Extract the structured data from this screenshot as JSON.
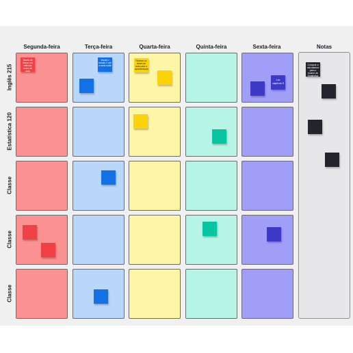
{
  "colors": {
    "monday": "#fb9191",
    "tuesday": "#b9d6fb",
    "wednesday": "#fdf6a7",
    "thursday": "#b6f5e6",
    "friday": "#a19ef8",
    "notes": "#e7e7e9",
    "sticky_red": "#f24047",
    "sticky_blue": "#1371e6",
    "sticky_yellow": "#fcd20b",
    "sticky_teal": "#08c5a2",
    "sticky_indigo": "#3d3ac7",
    "sticky_dark": "#22252b"
  },
  "columns": [
    "Segunda-feira",
    "Terça-feira",
    "Quarta-feira",
    "Quinta-feira",
    "Sexta-feira",
    "Notas"
  ],
  "rows": [
    "Inglês 215",
    "Estatística 120",
    "Classe",
    "Classe",
    "Classe"
  ],
  "sticky_notes": {
    "monday_r1": "Tarefa de leitura em reflexão antes de aula",
    "tuesday_r1": "Iniciar o ensaio 2 até a meia noite",
    "wednesday_r1": "Revisar os slides de aula para a apresentação",
    "friday_r1": "Ler capítulo 5",
    "notes_1": "Comprar a calculadora para o exame de Estatística"
  }
}
